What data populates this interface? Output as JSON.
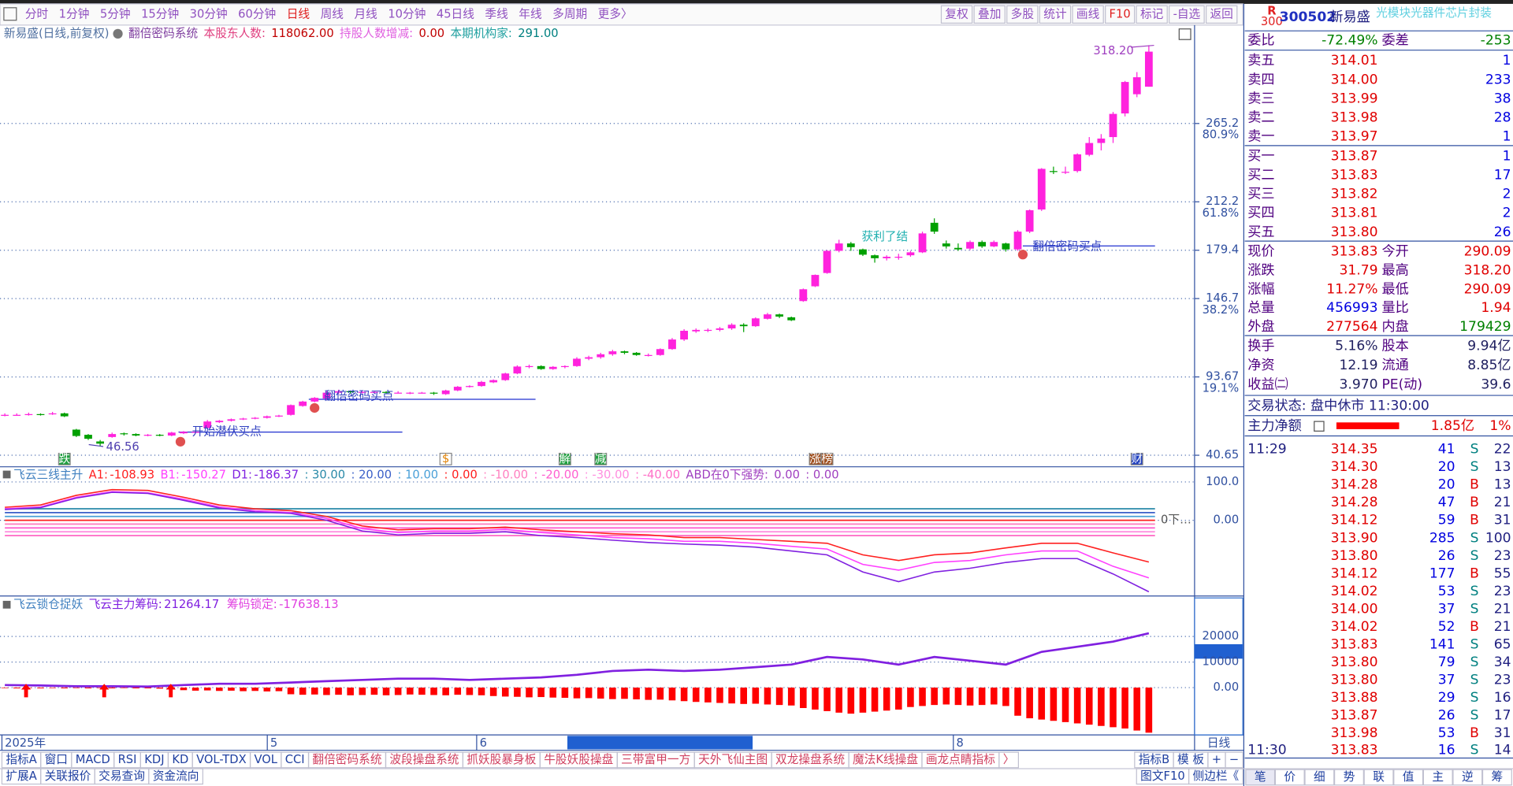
{
  "toolbar": {
    "left": [
      "分时",
      "1分钟",
      "5分钟",
      "15分钟",
      "30分钟",
      "60分钟",
      {
        "text": "日线",
        "color": "#e02020"
      },
      "周线",
      "月线",
      "10分钟",
      "45日线",
      "季线",
      "年线",
      "多周期",
      "更多〉"
    ],
    "right": [
      "复权",
      "叠加",
      "多股",
      "统计",
      "画线",
      {
        "text": "F10",
        "color": "#e02020"
      },
      "标记",
      "-自选",
      "返回"
    ]
  },
  "main_chart": {
    "header": [
      {
        "text": "新易盛(日线,前复权)",
        "color": "#5070a0"
      },
      {
        "text": "翻倍密码系统",
        "color": "#8040a0"
      },
      {
        "text": "本股东人数:",
        "color": "#e04080"
      },
      {
        "text": "118062.00",
        "color": "#c00000"
      },
      {
        "text": "持股人数增减:",
        "color": "#e060e0"
      },
      {
        "text": "0.00",
        "color": "#c00000"
      },
      {
        "text": "本期机构家:",
        "color": "#20a0a0"
      },
      {
        "text": "291.00",
        "color": "#008080"
      }
    ],
    "ylim": [
      33.5,
      329.2
    ],
    "yticks": [
      40.65,
      93.67,
      146.7,
      179.4,
      212.2,
      265.2
    ],
    "pct_labels": [
      "19.1%",
      "38.2%",
      "61.8%",
      "80.9%"
    ],
    "up_color": "#ff22dd",
    "down_color": "#00a000",
    "candles": [
      [
        67.5,
        69,
        67,
        68
      ],
      [
        68,
        69,
        67.5,
        68
      ],
      [
        68,
        69.5,
        67.5,
        68.5
      ],
      [
        68.5,
        69,
        67.5,
        68
      ],
      [
        68.5,
        70,
        68,
        69
      ],
      [
        69,
        69.5,
        66.5,
        67
      ],
      [
        58,
        58.5,
        53,
        53.7
      ],
      [
        54.5,
        55,
        51,
        51.8
      ],
      [
        50,
        51,
        46.56,
        48.5
      ],
      [
        53,
        56,
        52.5,
        55
      ],
      [
        55.5,
        56,
        54,
        55
      ],
      [
        55,
        55.5,
        53.5,
        54
      ],
      [
        54,
        55,
        53.5,
        54.5
      ],
      [
        54.5,
        55,
        53.5,
        54
      ],
      [
        54,
        56.5,
        53.5,
        56
      ],
      [
        55.5,
        57,
        55,
        56.5
      ],
      [
        56,
        57,
        55.5,
        56.5
      ],
      [
        59,
        64.5,
        58.5,
        63.5
      ],
      [
        63,
        64.5,
        62.5,
        64
      ],
      [
        64,
        65.5,
        63.5,
        65
      ],
      [
        65,
        66,
        64.5,
        65.5
      ],
      [
        65.5,
        66.5,
        65,
        66
      ],
      [
        66,
        67.5,
        65.5,
        67
      ],
      [
        67,
        68,
        66.5,
        67.5
      ],
      [
        68,
        75,
        67.5,
        74.6
      ],
      [
        74,
        77.5,
        73.5,
        77
      ],
      [
        77,
        80,
        76.5,
        79.5
      ],
      [
        79,
        84,
        78,
        83
      ],
      [
        83,
        85,
        82,
        84
      ],
      [
        84,
        84.5,
        82.5,
        83.5
      ],
      [
        83,
        84,
        82.5,
        83.5
      ],
      [
        83.5,
        84,
        82.5,
        83.5
      ],
      [
        83.5,
        84,
        82.5,
        83
      ],
      [
        83,
        84,
        82.5,
        83
      ],
      [
        83,
        83.5,
        82,
        83
      ],
      [
        83,
        83.5,
        82.5,
        83
      ],
      [
        83,
        83.5,
        81.5,
        82.5
      ],
      [
        82,
        85,
        81.5,
        84.5
      ],
      [
        84.5,
        87.5,
        84,
        87
      ],
      [
        87,
        88,
        86.5,
        87.5
      ],
      [
        87.5,
        91,
        87,
        90.3
      ],
      [
        90,
        92,
        89.5,
        91.5
      ],
      [
        91.5,
        96.5,
        91,
        96
      ],
      [
        96,
        101.5,
        95.5,
        100.7
      ],
      [
        100.5,
        102,
        99.5,
        101
      ],
      [
        101,
        101.5,
        98.5,
        99
      ],
      [
        99,
        101,
        98.5,
        100.5
      ],
      [
        100.5,
        101.5,
        99.5,
        101
      ],
      [
        101,
        107,
        100.5,
        106
      ],
      [
        106,
        108,
        105,
        107
      ],
      [
        107,
        110,
        106,
        109
      ],
      [
        109,
        112,
        108,
        111
      ],
      [
        111,
        111.5,
        109,
        110
      ],
      [
        110,
        110.5,
        108,
        108.5
      ],
      [
        108.5,
        109.5,
        107.5,
        108.5
      ],
      [
        108.5,
        113,
        108,
        112.5
      ],
      [
        112.5,
        120,
        112,
        119
      ],
      [
        119,
        126,
        118,
        124.9
      ],
      [
        124.5,
        126.5,
        123.5,
        125.5
      ],
      [
        125.5,
        126.5,
        124,
        125.5
      ],
      [
        125.5,
        127.5,
        124.5,
        126.5
      ],
      [
        126.5,
        130,
        125.5,
        129
      ],
      [
        129,
        130,
        124,
        128
      ],
      [
        128,
        134,
        127.5,
        133.3
      ],
      [
        133,
        137,
        132.5,
        136
      ],
      [
        136,
        136.5,
        133.5,
        134.5
      ],
      [
        134,
        134.5,
        131.5,
        132
      ],
      [
        145,
        153.5,
        144.5,
        153
      ],
      [
        155,
        163,
        154.5,
        162.7
      ],
      [
        164,
        179.5,
        163.5,
        179
      ],
      [
        179,
        186.5,
        178,
        184
      ],
      [
        184,
        185,
        179,
        181.5
      ],
      [
        180,
        180.5,
        175.5,
        176.4
      ],
      [
        176,
        176.5,
        171,
        174
      ],
      [
        174,
        176,
        172.5,
        175
      ],
      [
        175,
        177,
        173,
        175
      ],
      [
        176,
        179,
        175,
        178
      ],
      [
        178,
        192,
        177.5,
        190.8
      ],
      [
        198,
        201,
        190.5,
        192
      ],
      [
        184,
        186,
        180.5,
        182
      ],
      [
        181,
        184,
        179,
        180
      ],
      [
        180.5,
        186,
        179.5,
        185
      ],
      [
        185,
        186,
        181,
        182
      ],
      [
        182,
        186,
        181.5,
        185
      ],
      [
        184,
        184.5,
        178.5,
        180
      ],
      [
        180,
        193,
        179,
        192
      ],
      [
        192,
        207,
        191,
        206.5
      ],
      [
        207,
        235,
        206,
        234.5
      ],
      [
        233,
        236,
        231,
        232.5
      ],
      [
        232.5,
        236,
        231,
        232.5
      ],
      [
        233,
        245,
        232,
        244.3
      ],
      [
        244,
        256,
        243,
        252
      ],
      [
        252,
        258,
        247,
        255
      ],
      [
        256,
        273,
        252,
        271.7
      ],
      [
        272,
        294,
        270,
        293.3
      ],
      [
        285,
        300,
        283,
        296.5
      ],
      [
        290.09,
        318.2,
        290.09,
        313.83
      ]
    ],
    "high_label": "318.20",
    "low_label": "46.56",
    "annotations": [
      "翻倍密码买点",
      "开始潜伏买点",
      "获利了结",
      "翻倍密码买点"
    ],
    "events": [
      "跌",
      "$",
      "解",
      "减",
      "涨",
      "榜",
      "财"
    ]
  },
  "indicator1": {
    "title": "飞云三线主升",
    "ylim": [
      -195,
      132
    ],
    "yticks": [
      {
        "value": 100,
        "label": "100.0"
      },
      {
        "value": 0,
        "label": "0.00"
      }
    ],
    "series": [
      {
        "name": "A1:",
        "color": "#ff2020",
        "values": [
          34,
          40,
          65,
          80,
          78,
          60,
          40,
          30,
          25,
          10,
          -15,
          -25,
          -22,
          -22,
          -18,
          -25,
          -30,
          -35,
          -38,
          -45,
          -45,
          -50,
          -55,
          -60,
          -90,
          -105,
          -90,
          -85,
          -72,
          -60,
          -60,
          -85,
          -108.93
        ]
      },
      {
        "name": "B1:",
        "color": "#ff40ff",
        "values": [
          30,
          35,
          60,
          75,
          72,
          55,
          35,
          25,
          20,
          5,
          -22,
          -32,
          -28,
          -28,
          -24,
          -32,
          -38,
          -45,
          -48,
          -55,
          -55,
          -60,
          -68,
          -75,
          -115,
          -130,
          -110,
          -105,
          -90,
          -80,
          -80,
          -120,
          -150.27
        ]
      },
      {
        "name": "D1:",
        "color": "#8020e0",
        "values": [
          28,
          33,
          58,
          73,
          70,
          52,
          32,
          22,
          18,
          0,
          -28,
          -38,
          -34,
          -34,
          -30,
          -40,
          -45,
          -52,
          -58,
          -62,
          -65,
          -70,
          -80,
          -90,
          -135,
          -160,
          -135,
          -125,
          -110,
          -100,
          -100,
          -140,
          -186.37
        ]
      }
    ],
    "levels": [
      {
        "value": 30,
        "label": ": 30.00"
      },
      {
        "value": 20,
        "label": ": 20.00"
      },
      {
        "value": 10,
        "label": ": 10.00"
      },
      {
        "value": 0,
        "label": ": 0.00"
      },
      {
        "value": -10,
        "label": ": -10.00"
      },
      {
        "value": -20,
        "label": ": -20.00"
      },
      {
        "value": -30,
        "label": ": -30.00"
      },
      {
        "value": -40,
        "label": ": -40.00"
      }
    ],
    "level_colors": [
      "#2a8aa8",
      "#3a5fc8",
      "#4aa0d8",
      "#ff2020",
      "#ff80c0",
      "#ff60d0",
      "#ff90e0",
      "#ff70c8"
    ],
    "tail": [
      "ABD在0下强势:",
      "0.00",
      ": 0.00"
    ],
    "zero_tag": "0下…"
  },
  "indicator2": {
    "title": "飞云锁仓捉妖",
    "ylim": [
      -18500,
      34700
    ],
    "yticks": [
      20000,
      10000,
      {
        "value": 0,
        "label": "0.00"
      }
    ],
    "line": {
      "name": "飞云主力筹码:",
      "color": "#8020e0",
      "values": [
        1000,
        800,
        500,
        500,
        400,
        1000,
        1500,
        1500,
        2000,
        2500,
        3000,
        3500,
        3500,
        3000,
        3500,
        4000,
        5000,
        6500,
        7000,
        6500,
        7000,
        8000,
        9000,
        12000,
        11000,
        9000,
        12000,
        10500,
        9000,
        14000,
        16000,
        18000,
        21264.17
      ]
    },
    "bars": {
      "name": "筹码锁定:",
      "color": "#ff0000",
      "values": [
        -200,
        -300,
        -200,
        -300,
        -200,
        -300,
        -200,
        -300,
        -200,
        -300,
        -200,
        -300,
        -300,
        -400,
        -300,
        -1000,
        -1200,
        -1100,
        -1300,
        -1200,
        -1400,
        -1300,
        -1500,
        -1400,
        -2600,
        -2800,
        -2700,
        -2900,
        -2800,
        -3000,
        -2900,
        -2800,
        -3000,
        -2900,
        -2700,
        -2800,
        -2900,
        -3000,
        -2800,
        -2900,
        -3000,
        -3300,
        -3500,
        -3600,
        -3800,
        -3700,
        -3900,
        -4000,
        -4200,
        -4100,
        -4300,
        -4500,
        -4400,
        -4600,
        -4800,
        -4700,
        -5000,
        -5300,
        -5600,
        -5800,
        -6000,
        -6200,
        -6400,
        -6300,
        -6600,
        -6800,
        -7000,
        -8000,
        -8600,
        -9200,
        -9800,
        -10200,
        -9800,
        -9400,
        -9000,
        -8600,
        -7600,
        -7200,
        -6800,
        -6600,
        -6800,
        -7000,
        -6800,
        -6600,
        -7200,
        -11000,
        -12000,
        -12500,
        -13000,
        -13500,
        -14000,
        -14500,
        -15000,
        -15500,
        -16000,
        -16800,
        -17638.13
      ]
    }
  },
  "x_axis": {
    "labels": [
      "2025年",
      "5",
      "6",
      "8"
    ],
    "period": "日线"
  },
  "tabs": {
    "row1": [
      "指标A",
      "窗口",
      "MACD",
      "RSI",
      "KDJ",
      "KD",
      "VOL-TDX",
      "VOL",
      "CCI",
      "翻倍密码系统",
      "波段操盘系统",
      "抓妖股暴身板",
      "牛股妖股操盘",
      "三带富甲一方",
      "天外飞仙主图",
      "双龙操盘系统",
      "魔法K线操盘",
      "画龙点睛指标",
      "〉"
    ],
    "row1_right": [
      "指标B",
      "模 板",
      "+",
      "−"
    ],
    "row2": [
      "扩展A",
      "关联报价",
      "交易查询",
      "资金流向"
    ],
    "row2_right": [
      "图文F10",
      "侧边栏《"
    ]
  },
  "quote": {
    "logo": [
      "R",
      "300"
    ],
    "code": "300502",
    "name": "新易盛",
    "sector": "光模块光器件芯片封装",
    "ratio": [
      "委比",
      "-72.49%",
      "委差",
      "-253"
    ],
    "asks": [
      [
        "卖五",
        "314.01",
        "1"
      ],
      [
        "卖四",
        "314.00",
        "233"
      ],
      [
        "卖三",
        "313.99",
        "38"
      ],
      [
        "卖二",
        "313.98",
        "28"
      ],
      [
        "卖一",
        "313.97",
        "1"
      ]
    ],
    "bids": [
      [
        "买一",
        "313.87",
        "1"
      ],
      [
        "买二",
        "313.83",
        "17"
      ],
      [
        "买三",
        "313.82",
        "2"
      ],
      [
        "买四",
        "313.81",
        "2"
      ],
      [
        "买五",
        "313.80",
        "26"
      ]
    ],
    "stats": [
      [
        "现价",
        "313.83",
        "今开",
        "290.09"
      ],
      [
        "涨跌",
        "31.79",
        "最高",
        "318.20"
      ],
      [
        "涨幅",
        "11.27%",
        "最低",
        "290.09"
      ],
      [
        "总量",
        "456993",
        "量比",
        "1.94"
      ],
      [
        "外盘",
        "277564",
        "内盘",
        "179429"
      ]
    ],
    "fin": [
      [
        "换手",
        "5.16%",
        "股本",
        "9.94亿"
      ],
      [
        "净资",
        "12.19",
        "流通",
        "8.85亿"
      ],
      [
        "收益㈡",
        "3.970",
        "PE(动)",
        "39.6"
      ]
    ],
    "status": "交易状态: 盘中休市 11:30:00",
    "main_net": [
      "主力净额",
      "1.85亿",
      "1%"
    ],
    "tick_time": "11:29",
    "ticks": [
      [
        "314.35",
        "41",
        "S",
        "22"
      ],
      [
        "314.30",
        "20",
        "S",
        "13"
      ],
      [
        "314.28",
        "20",
        "B",
        "13"
      ],
      [
        "314.28",
        "47",
        "B",
        "21"
      ],
      [
        "314.12",
        "59",
        "B",
        "31"
      ],
      [
        "313.90",
        "285",
        "S",
        "100"
      ],
      [
        "313.80",
        "26",
        "S",
        "23"
      ],
      [
        "314.12",
        "177",
        "B",
        "55"
      ],
      [
        "314.02",
        "53",
        "S",
        "23"
      ],
      [
        "314.00",
        "37",
        "S",
        "21"
      ],
      [
        "314.02",
        "52",
        "B",
        "21"
      ],
      [
        "313.83",
        "141",
        "S",
        "65"
      ],
      [
        "313.80",
        "79",
        "S",
        "34"
      ],
      [
        "313.80",
        "37",
        "S",
        "23"
      ],
      [
        "313.88",
        "29",
        "S",
        "16"
      ],
      [
        "313.87",
        "26",
        "S",
        "17"
      ],
      [
        "313.98",
        "53",
        "B",
        "31"
      ]
    ],
    "last": [
      "11:30",
      "313.83",
      "16",
      "S",
      "14"
    ],
    "tabs": [
      "笔",
      "价",
      "细",
      "势",
      "联",
      "值",
      "主",
      "逆",
      "筹"
    ]
  }
}
